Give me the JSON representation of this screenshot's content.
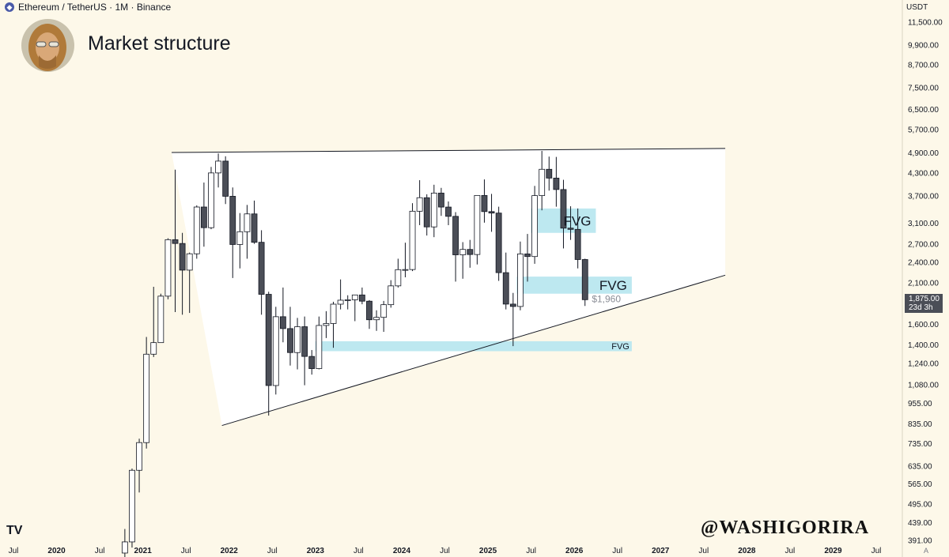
{
  "header": {
    "symbol": "Ethereum / TetherUS · 1M · Binance",
    "symbol_icon": "ethereum-icon"
  },
  "title": "Market structure",
  "currency": "USDT",
  "price_tag": {
    "price": "1,875.00",
    "countdown": "23d 3h"
  },
  "annotation_price": "$1,960",
  "watermark": "@WASHIGORIRA",
  "logo": "TV",
  "scale_mode": "A",
  "colors": {
    "background": "#fdf8e9",
    "fvg": "#bde8f0",
    "candle_up": "#ffffff",
    "candle_down": "#4b4e57",
    "wedge": "#ffffff",
    "line": "#131722"
  },
  "chart_data": {
    "type": "candlestick",
    "scale": "log",
    "y_ticks": [
      391,
      439,
      495,
      565,
      635,
      735,
      835,
      955,
      1080,
      1240,
      1400,
      1600,
      1875,
      2100,
      2400,
      2700,
      3100,
      3700,
      4300,
      4900,
      5700,
      6500,
      7500,
      8700,
      9900,
      11500
    ],
    "y_tick_labels": [
      "391.00",
      "439.00",
      "495.00",
      "565.00",
      "635.00",
      "735.00",
      "835.00",
      "955.00",
      "1,080.00",
      "1,240.00",
      "1,400.00",
      "1,600.00",
      "1,875.00",
      "2,100.00",
      "2,400.00",
      "2,700.00",
      "3,100.00",
      "3,700.00",
      "4,300.00",
      "4,900.00",
      "5,700.00",
      "6,500.00",
      "7,500.00",
      "8,700.00",
      "9,900.00",
      "11,500.00"
    ],
    "x_ticks": [
      {
        "label": "Jul",
        "date": "2019-07"
      },
      {
        "label": "2020",
        "date": "2020-01"
      },
      {
        "label": "Jul",
        "date": "2020-07"
      },
      {
        "label": "2021",
        "date": "2021-01"
      },
      {
        "label": "Jul",
        "date": "2021-07"
      },
      {
        "label": "2022",
        "date": "2022-01"
      },
      {
        "label": "Jul",
        "date": "2022-07"
      },
      {
        "label": "2023",
        "date": "2023-01"
      },
      {
        "label": "Jul",
        "date": "2023-07"
      },
      {
        "label": "2024",
        "date": "2024-01"
      },
      {
        "label": "Jul",
        "date": "2024-07"
      },
      {
        "label": "2025",
        "date": "2025-01"
      },
      {
        "label": "Jul",
        "date": "2025-07"
      },
      {
        "label": "2026",
        "date": "2026-01"
      },
      {
        "label": "Jul",
        "date": "2026-07"
      },
      {
        "label": "2027",
        "date": "2027-01"
      },
      {
        "label": "Jul",
        "date": "2027-07"
      },
      {
        "label": "2028",
        "date": "2028-01"
      },
      {
        "label": "Jul",
        "date": "2028-07"
      },
      {
        "label": "2029",
        "date": "2029-01"
      },
      {
        "label": "Jul",
        "date": "2029-07"
      }
    ],
    "candles": [
      {
        "date": "2020-10",
        "o": 359,
        "h": 420,
        "l": 308,
        "c": 386
      },
      {
        "date": "2020-11",
        "o": 386,
        "h": 623,
        "l": 372,
        "c": 616
      },
      {
        "date": "2020-12",
        "o": 616,
        "h": 757,
        "l": 533,
        "c": 738
      },
      {
        "date": "2021-01",
        "o": 738,
        "h": 1470,
        "l": 710,
        "c": 1314
      },
      {
        "date": "2021-02",
        "o": 1314,
        "h": 2040,
        "l": 1290,
        "c": 1417
      },
      {
        "date": "2021-03",
        "o": 1417,
        "h": 1950,
        "l": 1420,
        "c": 1919
      },
      {
        "date": "2021-04",
        "o": 1919,
        "h": 2800,
        "l": 1880,
        "c": 2774
      },
      {
        "date": "2021-05",
        "o": 2774,
        "h": 4380,
        "l": 1730,
        "c": 2706
      },
      {
        "date": "2021-06",
        "o": 2706,
        "h": 2900,
        "l": 1700,
        "c": 2274
      },
      {
        "date": "2021-07",
        "o": 2274,
        "h": 2550,
        "l": 1720,
        "c": 2530
      },
      {
        "date": "2021-08",
        "o": 2530,
        "h": 3470,
        "l": 2450,
        "c": 3433
      },
      {
        "date": "2021-09",
        "o": 3433,
        "h": 4027,
        "l": 2650,
        "c": 3000
      },
      {
        "date": "2021-10",
        "o": 3000,
        "h": 4460,
        "l": 2970,
        "c": 4288
      },
      {
        "date": "2021-11",
        "o": 4288,
        "h": 4868,
        "l": 3900,
        "c": 4632
      },
      {
        "date": "2021-12",
        "o": 4632,
        "h": 4780,
        "l": 3500,
        "c": 3682
      },
      {
        "date": "2022-01",
        "o": 3682,
        "h": 3900,
        "l": 2160,
        "c": 2688
      },
      {
        "date": "2022-02",
        "o": 2688,
        "h": 3300,
        "l": 2300,
        "c": 2922
      },
      {
        "date": "2022-03",
        "o": 2922,
        "h": 3480,
        "l": 2450,
        "c": 3282
      },
      {
        "date": "2022-04",
        "o": 3282,
        "h": 3580,
        "l": 2700,
        "c": 2727
      },
      {
        "date": "2022-05",
        "o": 2727,
        "h": 2950,
        "l": 1700,
        "c": 1942
      },
      {
        "date": "2022-06",
        "o": 1942,
        "h": 1975,
        "l": 880,
        "c": 1071
      },
      {
        "date": "2022-07",
        "o": 1071,
        "h": 1790,
        "l": 1010,
        "c": 1678
      },
      {
        "date": "2022-08",
        "o": 1678,
        "h": 2030,
        "l": 1420,
        "c": 1553
      },
      {
        "date": "2022-09",
        "o": 1553,
        "h": 1790,
        "l": 1220,
        "c": 1328
      },
      {
        "date": "2022-10",
        "o": 1328,
        "h": 1665,
        "l": 1190,
        "c": 1572
      },
      {
        "date": "2022-11",
        "o": 1572,
        "h": 1680,
        "l": 1073,
        "c": 1295
      },
      {
        "date": "2022-12",
        "o": 1295,
        "h": 1350,
        "l": 1150,
        "c": 1196
      },
      {
        "date": "2023-01",
        "o": 1196,
        "h": 1680,
        "l": 1190,
        "c": 1585
      },
      {
        "date": "2023-02",
        "o": 1585,
        "h": 1740,
        "l": 1460,
        "c": 1605
      },
      {
        "date": "2023-03",
        "o": 1605,
        "h": 1850,
        "l": 1370,
        "c": 1821
      },
      {
        "date": "2023-04",
        "o": 1821,
        "h": 2140,
        "l": 1760,
        "c": 1869
      },
      {
        "date": "2023-05",
        "o": 1869,
        "h": 1930,
        "l": 1760,
        "c": 1874
      },
      {
        "date": "2023-06",
        "o": 1874,
        "h": 1930,
        "l": 1630,
        "c": 1934
      },
      {
        "date": "2023-07",
        "o": 1934,
        "h": 2030,
        "l": 1820,
        "c": 1857
      },
      {
        "date": "2023-08",
        "o": 1857,
        "h": 1870,
        "l": 1550,
        "c": 1645
      },
      {
        "date": "2023-09",
        "o": 1645,
        "h": 1750,
        "l": 1530,
        "c": 1671
      },
      {
        "date": "2023-10",
        "o": 1671,
        "h": 1860,
        "l": 1520,
        "c": 1815
      },
      {
        "date": "2023-11",
        "o": 1815,
        "h": 2130,
        "l": 1780,
        "c": 2052
      },
      {
        "date": "2023-12",
        "o": 2052,
        "h": 2450,
        "l": 2030,
        "c": 2281
      },
      {
        "date": "2024-01",
        "o": 2281,
        "h": 2720,
        "l": 2170,
        "c": 2283
      },
      {
        "date": "2024-02",
        "o": 2283,
        "h": 3520,
        "l": 2260,
        "c": 3340
      },
      {
        "date": "2024-03",
        "o": 3340,
        "h": 4090,
        "l": 3050,
        "c": 3648
      },
      {
        "date": "2024-04",
        "o": 3648,
        "h": 3730,
        "l": 2850,
        "c": 3015
      },
      {
        "date": "2024-05",
        "o": 3015,
        "h": 3970,
        "l": 2820,
        "c": 3760
      },
      {
        "date": "2024-06",
        "o": 3760,
        "h": 3890,
        "l": 3240,
        "c": 3432
      },
      {
        "date": "2024-07",
        "o": 3432,
        "h": 3560,
        "l": 3050,
        "c": 3230
      },
      {
        "date": "2024-08",
        "o": 3230,
        "h": 3320,
        "l": 2110,
        "c": 2513
      },
      {
        "date": "2024-09",
        "o": 2513,
        "h": 2730,
        "l": 2150,
        "c": 2603
      },
      {
        "date": "2024-10",
        "o": 2603,
        "h": 2770,
        "l": 2310,
        "c": 2518
      },
      {
        "date": "2024-11",
        "o": 2518,
        "h": 3680,
        "l": 2360,
        "c": 3702
      },
      {
        "date": "2024-12",
        "o": 3702,
        "h": 4110,
        "l": 3100,
        "c": 3332
      },
      {
        "date": "2025-01",
        "o": 3332,
        "h": 3740,
        "l": 2920,
        "c": 3300
      },
      {
        "date": "2025-02",
        "o": 3300,
        "h": 3440,
        "l": 2120,
        "c": 2237
      },
      {
        "date": "2025-03",
        "o": 2237,
        "h": 2550,
        "l": 1760,
        "c": 1822
      },
      {
        "date": "2025-04",
        "o": 1822,
        "h": 1960,
        "l": 1385,
        "c": 1794
      },
      {
        "date": "2025-05",
        "o": 1794,
        "h": 2740,
        "l": 1750,
        "c": 2528
      },
      {
        "date": "2025-06",
        "o": 2528,
        "h": 2880,
        "l": 2110,
        "c": 2485
      },
      {
        "date": "2025-07",
        "o": 2485,
        "h": 3940,
        "l": 2370,
        "c": 3698
      },
      {
        "date": "2025-08",
        "o": 3698,
        "h": 4950,
        "l": 3360,
        "c": 4391
      },
      {
        "date": "2025-09",
        "o": 4391,
        "h": 4770,
        "l": 3820,
        "c": 4146
      },
      {
        "date": "2025-10",
        "o": 4146,
        "h": 4760,
        "l": 3440,
        "c": 3848
      },
      {
        "date": "2025-11",
        "o": 3848,
        "h": 4100,
        "l": 2620,
        "c": 2991
      },
      {
        "date": "2025-12",
        "o": 2991,
        "h": 3450,
        "l": 2770,
        "c": 2967
      },
      {
        "date": "2026-01",
        "o": 2967,
        "h": 3400,
        "l": 2300,
        "c": 2437
      },
      {
        "date": "2026-02",
        "o": 2437,
        "h": 2450,
        "l": 1800,
        "c": 1875
      }
    ],
    "annotations": [
      {
        "type": "fvg_zone",
        "label": "FVG",
        "from": "2025-07",
        "to": "2026-04",
        "low": 2900,
        "high": 3400
      },
      {
        "type": "fvg_zone",
        "label": "FVG",
        "from": "2025-05",
        "to": "2026-09",
        "low": 1950,
        "high": 2180
      },
      {
        "type": "fvg_zone",
        "label": "FVG",
        "from": "2023-01",
        "to": "2026-09",
        "low": 1340,
        "high": 1430
      },
      {
        "type": "price_label",
        "label": "$1,960",
        "date": "2026-03",
        "price": 1960
      }
    ],
    "wedge": {
      "upper": [
        {
          "date": "2021-05",
          "price": 4900
        },
        {
          "date": "2027-10",
          "price": 5030
        }
      ],
      "lower": [
        {
          "date": "2021-12",
          "price": 825
        },
        {
          "date": "2027-10",
          "price": 2200
        }
      ],
      "fill_left": {
        "date": "2021-05",
        "price": 4900
      }
    }
  }
}
